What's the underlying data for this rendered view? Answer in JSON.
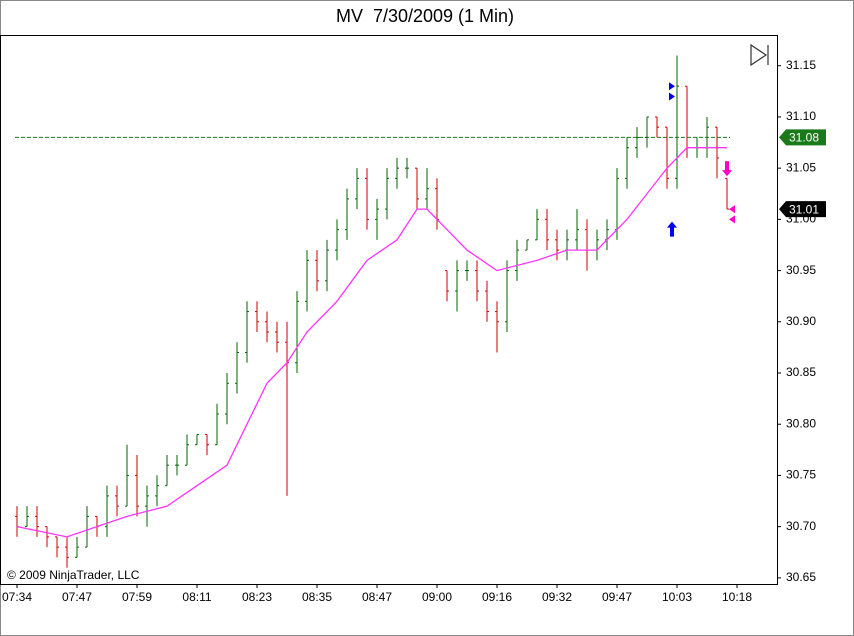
{
  "chart_data": {
    "type": "ohlc",
    "title": "MV  7/30/2009 (1 Min)",
    "copyright": "© 2009 NinjaTrader, LLC",
    "up_color": "#006400",
    "down_color": "#cc0000",
    "x": [
      0,
      2,
      4,
      6,
      8,
      10,
      12,
      14,
      16,
      18,
      20,
      22,
      24,
      26,
      28,
      30,
      32,
      34,
      36,
      38,
      40,
      42,
      44,
      46,
      48,
      50,
      52,
      54,
      56,
      58,
      60,
      62,
      64,
      66,
      68,
      70,
      72,
      74,
      76,
      78,
      80,
      82,
      84,
      86,
      88,
      90,
      92,
      94,
      96,
      98,
      100,
      102,
      104,
      106,
      108,
      110,
      112,
      114,
      116,
      118,
      120,
      122,
      124,
      126,
      128,
      130,
      132,
      134,
      136,
      138,
      140,
      142
    ],
    "open": [
      30.71,
      30.7,
      30.71,
      30.7,
      30.69,
      30.68,
      30.67,
      30.68,
      30.71,
      30.7,
      30.73,
      30.72,
      30.75,
      30.72,
      30.73,
      30.74,
      30.76,
      30.76,
      30.78,
      30.79,
      30.78,
      30.81,
      30.84,
      30.87,
      30.91,
      30.9,
      30.89,
      30.88,
      30.86,
      30.92,
      30.96,
      30.94,
      30.97,
      30.99,
      31.02,
      31.04,
      31.0,
      31.01,
      31.04,
      31.05,
      31.05,
      31.02,
      31.03,
      30.95,
      30.93,
      30.95,
      30.95,
      30.93,
      30.91,
      30.9,
      30.95,
      30.97,
      30.98,
      31.0,
      30.98,
      30.97,
      30.98,
      30.99,
      30.97,
      30.98,
      30.99,
      31.04,
      31.07,
      31.08,
      31.1,
      31.09,
      31.04,
      31.13,
      31.07,
      31.07,
      31.09,
      31.04
    ],
    "high": [
      30.72,
      30.72,
      30.72,
      30.7,
      30.69,
      30.69,
      30.69,
      30.72,
      30.71,
      30.74,
      30.74,
      30.78,
      30.77,
      30.74,
      30.75,
      30.77,
      30.77,
      30.79,
      30.79,
      30.79,
      30.82,
      30.85,
      30.88,
      30.92,
      30.92,
      30.91,
      30.9,
      30.9,
      30.93,
      30.97,
      30.97,
      30.98,
      31.0,
      31.03,
      31.05,
      31.05,
      31.02,
      31.05,
      31.06,
      31.06,
      31.05,
      31.05,
      31.04,
      30.95,
      30.96,
      30.96,
      30.96,
      30.94,
      30.92,
      30.96,
      30.98,
      30.98,
      31.01,
      31.01,
      30.99,
      30.99,
      31.01,
      31.0,
      30.99,
      31.0,
      31.05,
      31.08,
      31.09,
      31.1,
      31.1,
      31.09,
      31.16,
      31.13,
      31.08,
      31.1,
      31.09,
      31.04
    ],
    "low": [
      30.69,
      30.7,
      30.69,
      30.68,
      30.67,
      30.66,
      30.67,
      30.68,
      30.69,
      30.69,
      30.71,
      30.72,
      30.71,
      30.7,
      30.72,
      30.74,
      30.75,
      30.76,
      30.78,
      30.77,
      30.78,
      30.8,
      30.83,
      30.86,
      30.89,
      30.88,
      30.87,
      30.73,
      30.85,
      30.91,
      30.93,
      30.93,
      30.96,
      30.98,
      31.01,
      30.99,
      30.98,
      31.0,
      31.03,
      31.04,
      31.01,
      31.01,
      30.99,
      30.92,
      30.91,
      30.94,
      30.92,
      30.9,
      30.87,
      30.89,
      30.94,
      30.97,
      30.98,
      30.97,
      30.96,
      30.96,
      30.97,
      30.95,
      30.96,
      30.97,
      30.98,
      31.03,
      31.06,
      31.07,
      31.08,
      31.03,
      31.03,
      31.06,
      31.06,
      31.06,
      31.04,
      31.01
    ],
    "close": [
      30.7,
      30.71,
      30.7,
      30.69,
      30.68,
      30.67,
      30.68,
      30.71,
      30.7,
      30.73,
      30.72,
      30.75,
      30.72,
      30.73,
      30.74,
      30.76,
      30.76,
      30.78,
      30.79,
      30.78,
      30.81,
      30.84,
      30.87,
      30.91,
      30.9,
      30.89,
      30.88,
      30.86,
      30.92,
      30.96,
      30.94,
      30.97,
      30.99,
      31.02,
      31.04,
      31.0,
      31.01,
      31.04,
      31.05,
      31.05,
      31.02,
      31.03,
      31.0,
      30.93,
      30.95,
      30.95,
      30.93,
      30.91,
      30.9,
      30.95,
      30.97,
      30.98,
      31.0,
      30.98,
      30.97,
      30.98,
      30.99,
      30.97,
      30.98,
      30.99,
      31.04,
      31.07,
      31.08,
      31.1,
      31.09,
      31.04,
      31.13,
      31.07,
      31.07,
      31.09,
      31.06,
      31.01
    ],
    "ma": {
      "color": "#ff33ff",
      "x": [
        0,
        10,
        22,
        30,
        36,
        42,
        46,
        50,
        54,
        58,
        64,
        70,
        76,
        80,
        82,
        86,
        90,
        96,
        104,
        110,
        116,
        122,
        130,
        134,
        140,
        142
      ],
      "values": [
        30.7,
        30.69,
        30.71,
        30.72,
        30.74,
        30.76,
        30.8,
        30.84,
        30.86,
        30.89,
        30.92,
        30.96,
        30.98,
        31.01,
        31.01,
        30.99,
        30.97,
        30.95,
        30.96,
        30.97,
        30.97,
        31.0,
        31.05,
        31.07,
        31.07,
        31.07
      ]
    },
    "price_markers": [
      {
        "value": 31.08,
        "color": "#1a7a1a",
        "line": true
      },
      {
        "value": 31.01,
        "color": "#000000",
        "line": false
      }
    ],
    "signals": [
      {
        "x": 131,
        "y": 30.99,
        "kind": "up",
        "color": "#0000ee"
      },
      {
        "x": 142,
        "y": 31.05,
        "kind": "down",
        "color": "#ff00cc"
      },
      {
        "x": 131,
        "y": 31.13,
        "kind": "right",
        "color": "#0000ee"
      },
      {
        "x": 131,
        "y": 31.12,
        "kind": "right",
        "color": "#0000ee"
      },
      {
        "x": 143,
        "y": 31.01,
        "kind": "left",
        "color": "#ff00cc"
      },
      {
        "x": 143,
        "y": 31.0,
        "kind": "left",
        "color": "#ff00cc"
      }
    ],
    "xlim": [
      -3.4,
      152
    ],
    "xticks": [
      {
        "value": 0,
        "label": "07:34"
      },
      {
        "value": 12,
        "label": "07:47"
      },
      {
        "value": 24,
        "label": "07:59"
      },
      {
        "value": 36,
        "label": "08:11"
      },
      {
        "value": 48,
        "label": "08:23"
      },
      {
        "value": 60,
        "label": "08:35"
      },
      {
        "value": 72,
        "label": "08:47"
      },
      {
        "value": 84,
        "label": "09:00"
      },
      {
        "value": 96,
        "label": "09:16"
      },
      {
        "value": 108,
        "label": "09:32"
      },
      {
        "value": 120,
        "label": "09:47"
      },
      {
        "value": 132,
        "label": "10:03"
      },
      {
        "value": 144,
        "label": "10:18"
      }
    ],
    "ylim": [
      30.644,
      31.18
    ],
    "yticks": [
      30.65,
      {
        "value": 30.7,
        "label": "30.70"
      },
      30.75,
      {
        "value": 30.8,
        "label": "30.80"
      },
      30.85,
      {
        "value": 30.9,
        "label": "30.90"
      },
      30.95,
      {
        "value": 31.0,
        "label": "31.00"
      },
      31.05,
      {
        "value": 31.1,
        "label": "31.10"
      },
      31.15
    ]
  }
}
